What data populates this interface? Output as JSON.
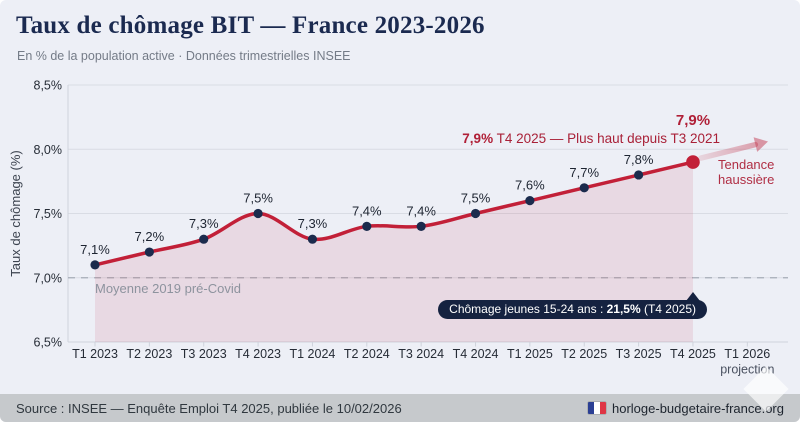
{
  "header": {
    "title": "Taux de chômage BIT — France 2023-2026",
    "subtitle": "En % de la population active · Données trimestrielles INSEE"
  },
  "chart_data": {
    "type": "line",
    "title": "Taux de chômage BIT — France 2023-2026",
    "x": [
      "T1 2023",
      "T2 2023",
      "T3 2023",
      "T4 2023",
      "T1 2024",
      "T2 2024",
      "T3 2024",
      "T4 2024",
      "T1 2025",
      "T2 2025",
      "T3 2025",
      "T4 2025",
      "T1 2026"
    ],
    "x_sublabel": {
      "index": 12,
      "text": "projection"
    },
    "series": [
      {
        "name": "Taux de chômage BIT",
        "values": [
          7.1,
          7.2,
          7.3,
          7.5,
          7.3,
          7.4,
          7.4,
          7.5,
          7.6,
          7.7,
          7.8,
          7.9
        ],
        "labels": [
          "7,1%",
          "7,2%",
          "7,3%",
          "7,5%",
          "7,3%",
          "7,4%",
          "7,4%",
          "7,5%",
          "7,6%",
          "7,7%",
          "7,8%",
          "7,9%"
        ]
      }
    ],
    "ylabel": "Taux de chômage (%)",
    "ylim": [
      6.5,
      8.5
    ],
    "y_ticks": [
      {
        "value": 6.5,
        "label": "6,5%"
      },
      {
        "value": 7.0,
        "label": "7,0%"
      },
      {
        "value": 7.5,
        "label": "7,5%"
      },
      {
        "value": 8.0,
        "label": "8,0%"
      },
      {
        "value": 8.5,
        "label": "8,5%"
      }
    ],
    "reference_line": {
      "value": 7.0,
      "label": "Moyenne 2019 pré-Covid"
    },
    "grid": true,
    "legend": "none",
    "colors": {
      "line": "#c22038",
      "point": "#1b2b4d",
      "point_last": "#c22038",
      "area": "rgba(194,32,56,0.10)",
      "grid": "#d9dce4",
      "axis": "#cfd3dc",
      "dashed": "#a7adb8",
      "label": "#1d2431",
      "tick_text": "#262c36",
      "sublabel_text": "#4a5160",
      "axis_title": "#3d4450",
      "arrow": "#c43c52"
    }
  },
  "annotations": {
    "peak_big": "7,9%",
    "peak_line_value": "7,9%",
    "peak_line_rest": " T4 2025 — Plus haut depuis T3 2021",
    "trend": "Tendance haussière"
  },
  "badge": {
    "prefix": "Chômage jeunes 15-24 ans : ",
    "value": "21,5%",
    "suffix": " (T4 2025)"
  },
  "footer": {
    "source": "Source : INSEE — Enquête Emploi T4 2025, publiée le 10/02/2026",
    "site": "horloge-budgetaire-france.org",
    "flag_icon": "french-flag-icon"
  },
  "colors": {
    "background": "#edeff6",
    "title": "#1b2a50",
    "accent_red": "#b01f37",
    "badge_bg": "#152240",
    "footer_bg": "#c6c9cc"
  }
}
